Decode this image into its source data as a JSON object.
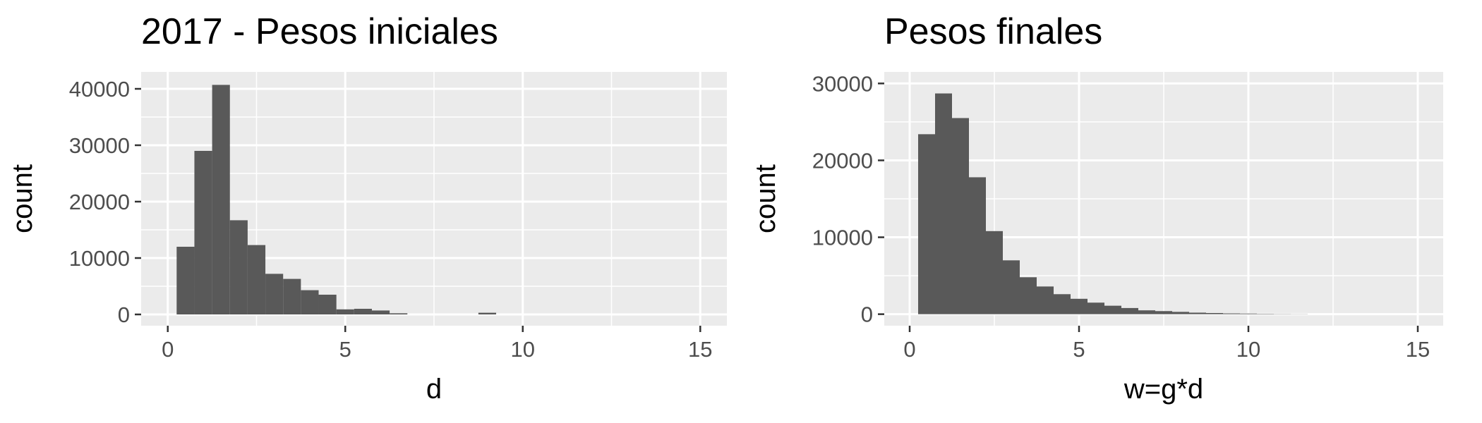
{
  "colors": {
    "bar": "#595959",
    "panel_background": "#ebebeb",
    "grid": "#ffffff",
    "tick_label": "#4d4d4d"
  },
  "chart_data": [
    {
      "type": "bar",
      "title": "2017 - Pesos iniciales",
      "xlabel": "d",
      "ylabel": "count",
      "xlim": [
        -0.75,
        15.75
      ],
      "ylim": [
        -2000,
        43000
      ],
      "xticks": [
        0,
        5,
        10,
        15
      ],
      "xtick_labels": [
        "0",
        "5",
        "10",
        "15"
      ],
      "yticks": [
        0,
        10000,
        20000,
        30000,
        40000
      ],
      "ytick_labels": [
        "0",
        "10000",
        "20000",
        "30000",
        "40000"
      ],
      "bin_width": 0.5,
      "bin_starts": [
        0.25,
        0.75,
        1.25,
        1.75,
        2.25,
        2.75,
        3.25,
        3.75,
        4.25,
        4.75,
        5.25,
        5.75,
        6.25,
        6.75,
        7.25,
        7.75,
        8.25,
        8.75
      ],
      "values": [
        12000,
        29000,
        40700,
        16700,
        12300,
        7200,
        6300,
        4300,
        3500,
        900,
        1000,
        700,
        200,
        0,
        0,
        0,
        0,
        300
      ],
      "grid": true,
      "legend": "none"
    },
    {
      "type": "bar",
      "title": "Pesos finales",
      "xlabel": "w=g*d",
      "ylabel": "count",
      "xlim": [
        -0.75,
        15.75
      ],
      "ylim": [
        -1500,
        31500
      ],
      "xticks": [
        0,
        5,
        10,
        15
      ],
      "xtick_labels": [
        "0",
        "5",
        "10",
        "15"
      ],
      "yticks": [
        0,
        10000,
        20000,
        30000
      ],
      "ytick_labels": [
        "0",
        "10000",
        "20000",
        "30000"
      ],
      "bin_width": 0.5,
      "bin_starts": [
        0.25,
        0.75,
        1.25,
        1.75,
        2.25,
        2.75,
        3.25,
        3.75,
        4.25,
        4.75,
        5.25,
        5.75,
        6.25,
        6.75,
        7.25,
        7.75,
        8.25,
        8.75,
        9.25,
        9.75,
        10.25,
        10.75,
        11.25
      ],
      "values": [
        23400,
        28700,
        25500,
        17800,
        10800,
        7000,
        4800,
        3600,
        2600,
        2000,
        1500,
        1100,
        800,
        500,
        400,
        300,
        200,
        150,
        100,
        80,
        50,
        30,
        20
      ],
      "grid": true,
      "legend": "none"
    }
  ]
}
